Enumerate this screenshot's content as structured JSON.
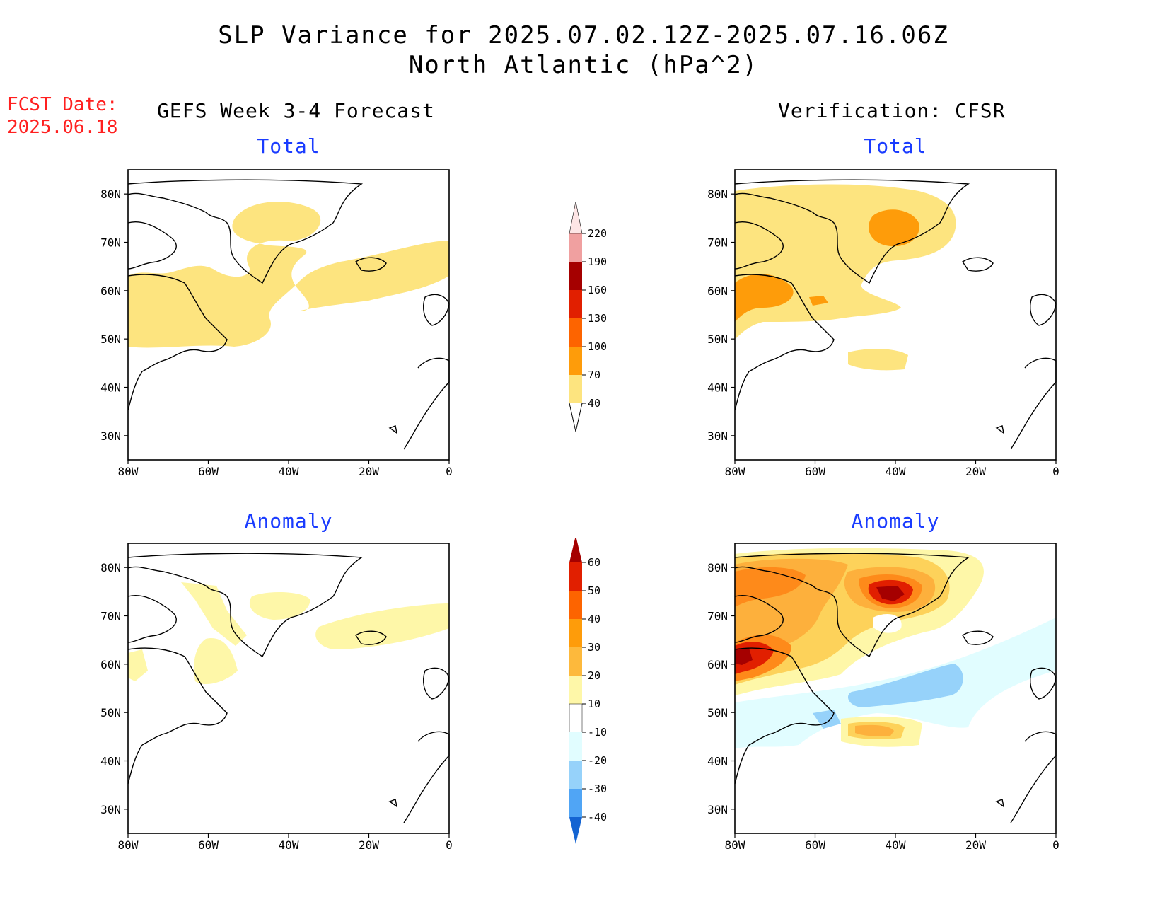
{
  "title": {
    "line1": "SLP Variance for 2025.07.02.12Z-2025.07.16.06Z",
    "line2": "North Atlantic (hPa^2)"
  },
  "fcst": {
    "label": "FCST Date:",
    "date": "2025.06.18"
  },
  "columns": {
    "left": "GEFS Week 3-4 Forecast",
    "right": "Verification: CFSR"
  },
  "panels": {
    "total_label": "Total",
    "anomaly_label": "Anomaly"
  },
  "axes": {
    "lat_labels": [
      "80N",
      "70N",
      "60N",
      "50N",
      "40N",
      "30N"
    ],
    "lat_values": [
      80,
      70,
      60,
      50,
      40,
      30
    ],
    "lon_labels": [
      "80W",
      "60W",
      "40W",
      "20W",
      "0"
    ],
    "lon_values": [
      -80,
      -60,
      -40,
      -20,
      0
    ],
    "lat_range": [
      25,
      85
    ],
    "lon_range": [
      -80,
      0
    ]
  },
  "colorbars": {
    "total": {
      "levels": [
        "40",
        "70",
        "100",
        "130",
        "160",
        "190",
        "220"
      ],
      "colors": [
        "#fde47f",
        "#fe9c0a",
        "#fd6400",
        "#e11f00",
        "#a50000",
        "#f0a0a0",
        "#fde5e5"
      ]
    },
    "anomaly": {
      "levels": [
        "60",
        "50",
        "40",
        "30",
        "20",
        "10",
        "-10",
        "-20",
        "-30",
        "-40"
      ],
      "colors_top_to_bottom": [
        "#a50000",
        "#e11f00",
        "#fd6400",
        "#fe9c0a",
        "#fdb93c",
        "#fef7a8",
        "#ffffff",
        "#e1fdff",
        "#96d2fa",
        "#50a5f5",
        "#1464d2"
      ]
    }
  },
  "legend_colors": {
    "total_40_70": "#fde47f",
    "total_70_100": "#fe9c0a",
    "anom_10_20": "#fef7a8",
    "anom_20_30": "#fdd25a",
    "anom_30_40": "#fdb03c",
    "anom_40_50": "#fe8a1a",
    "anom_50_60": "#e11f00",
    "anom_gt60": "#a50000",
    "anom_m10_m20": "#e1fdff",
    "anom_m20_m30": "#96d2fa"
  }
}
